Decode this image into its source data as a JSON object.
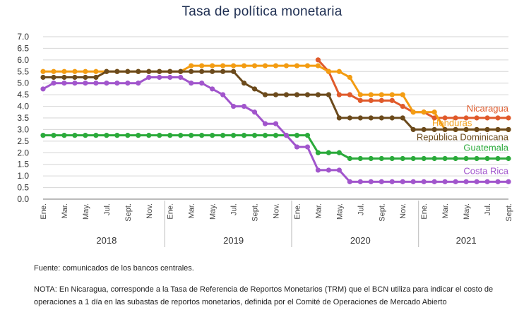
{
  "chart_data": {
    "type": "line",
    "title": "Tasa de política monetaria",
    "ylim": [
      0,
      7
    ],
    "yticks": [
      "0.0",
      "0.5",
      "1.0",
      "1.5",
      "2.0",
      "2.5",
      "3.0",
      "3.5",
      "4.0",
      "4.5",
      "5.0",
      "5.5",
      "6.0",
      "6.5",
      "7.0"
    ],
    "grid": true,
    "month_labels": [
      "Ene.",
      "Mar.",
      "May.",
      "Jul.",
      "Sept.",
      "Nov.",
      "Ene.",
      "Mar.",
      "May.",
      "Jul.",
      "Sept.",
      "Nov.",
      "Ene.",
      "Mar.",
      "May.",
      "Jul.",
      "Sept.",
      "Nov.",
      "Ene.",
      "Mar.",
      "May.",
      "Jul.",
      "Sept."
    ],
    "years": [
      "2018",
      "2019",
      "2020",
      "2021"
    ],
    "x_start": "2018-01",
    "x_end": "2021-09",
    "series": [
      {
        "name": "Nicaragua",
        "color": "#e05a2b",
        "x_start": "2020-03",
        "values": [
          6.0,
          5.5,
          4.5,
          4.5,
          4.25,
          4.25,
          4.25,
          4.25,
          4.0,
          3.75,
          3.75,
          3.5,
          3.5,
          3.5,
          3.5,
          3.5,
          3.5,
          3.5,
          3.5
        ]
      },
      {
        "name": "Honduras",
        "color": "#f39c12",
        "x_start": "2018-01",
        "values": [
          5.5,
          5.5,
          5.5,
          5.5,
          5.5,
          5.5,
          5.5,
          5.5,
          5.5,
          5.5,
          5.5,
          5.5,
          5.5,
          5.5,
          5.75,
          5.75,
          5.75,
          5.75,
          5.75,
          5.75,
          5.75,
          5.75,
          5.75,
          5.75,
          5.75,
          5.75,
          5.75,
          5.5,
          5.5,
          5.25,
          4.5,
          4.5,
          4.5,
          4.5,
          4.5,
          3.75,
          3.75,
          3.75,
          3.0,
          3.0,
          3.0,
          3.0,
          3.0,
          3.0,
          3.0
        ]
      },
      {
        "name": "República Dominicana",
        "color": "#6b4a1c",
        "x_start": "2018-01",
        "values": [
          5.25,
          5.25,
          5.25,
          5.25,
          5.25,
          5.25,
          5.5,
          5.5,
          5.5,
          5.5,
          5.5,
          5.5,
          5.5,
          5.5,
          5.5,
          5.5,
          5.5,
          5.5,
          5.5,
          5.0,
          4.75,
          4.5,
          4.5,
          4.5,
          4.5,
          4.5,
          4.5,
          4.5,
          3.5,
          3.5,
          3.5,
          3.5,
          3.5,
          3.5,
          3.5,
          3.0,
          3.0,
          3.0,
          3.0,
          3.0,
          3.0,
          3.0,
          3.0,
          3.0,
          3.0
        ]
      },
      {
        "name": "Guatemala",
        "color": "#2aaa3a",
        "x_start": "2018-01",
        "values": [
          2.75,
          2.75,
          2.75,
          2.75,
          2.75,
          2.75,
          2.75,
          2.75,
          2.75,
          2.75,
          2.75,
          2.75,
          2.75,
          2.75,
          2.75,
          2.75,
          2.75,
          2.75,
          2.75,
          2.75,
          2.75,
          2.75,
          2.75,
          2.75,
          2.75,
          2.75,
          2.0,
          2.0,
          2.0,
          1.75,
          1.75,
          1.75,
          1.75,
          1.75,
          1.75,
          1.75,
          1.75,
          1.75,
          1.75,
          1.75,
          1.75,
          1.75,
          1.75,
          1.75,
          1.75
        ]
      },
      {
        "name": "Costa Rica",
        "color": "#a155cc",
        "x_start": "2018-01",
        "values": [
          4.75,
          5.0,
          5.0,
          5.0,
          5.0,
          5.0,
          5.0,
          5.0,
          5.0,
          5.0,
          5.25,
          5.25,
          5.25,
          5.25,
          5.0,
          5.0,
          4.75,
          4.5,
          4.0,
          4.0,
          3.75,
          3.25,
          3.25,
          2.75,
          2.25,
          2.25,
          1.25,
          1.25,
          1.25,
          0.75,
          0.75,
          0.75,
          0.75,
          0.75,
          0.75,
          0.75,
          0.75,
          0.75,
          0.75,
          0.75,
          0.75,
          0.75,
          0.75,
          0.75,
          0.75
        ]
      }
    ]
  },
  "notes": {
    "source": "Fuente: comunicados de los bancos centrales.",
    "note": "NOTA: En Nicaragua, corresponde a la Tasa de Referencia de Reportos Monetarios (TRM) que el BCN utiliza para indicar el costo de operaciones a 1 día en las subastas de reportos monetarios, definida por el Comité de Operaciones de Mercado Abierto"
  }
}
